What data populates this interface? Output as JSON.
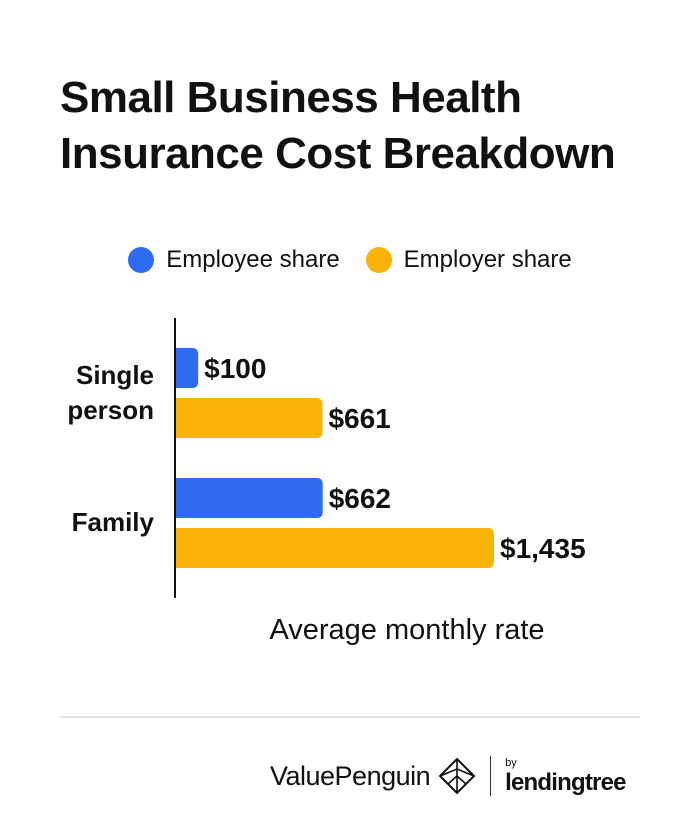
{
  "title": "Small Business Health Insurance Cost Breakdown",
  "chart_data": {
    "type": "bar",
    "orientation": "horizontal",
    "categories": [
      "Single person",
      "Family"
    ],
    "series": [
      {
        "name": "Employee share",
        "values": [
          100,
          662
        ],
        "labels": [
          "$100",
          "$662"
        ],
        "color": "#2e6bf0"
      },
      {
        "name": "Employer share",
        "values": [
          661,
          1435
        ],
        "labels": [
          "$661",
          "$1,435"
        ],
        "color": "#f9b208"
      }
    ],
    "xlabel": "Average monthly rate",
    "legend_position": "top-center",
    "grid": false
  },
  "footer": {
    "brand": "ValuePenguin",
    "by": "by",
    "partner": "lendingtree",
    "brand_icon": "valuepenguin-logo-icon"
  }
}
